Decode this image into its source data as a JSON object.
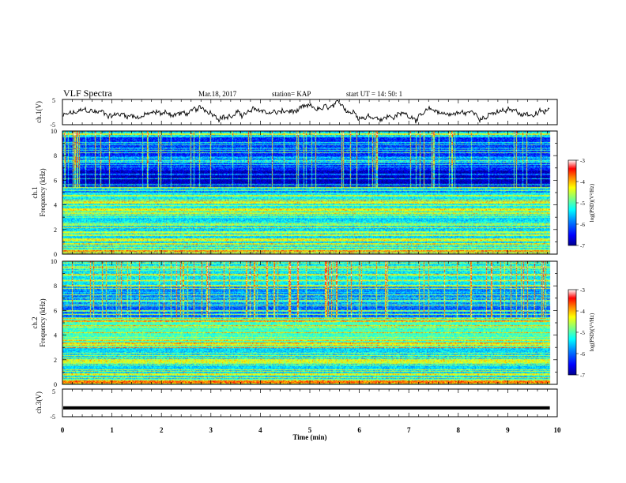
{
  "header": {
    "title": "VLF Spectra",
    "date": "Mar.18, 2017",
    "station": "station= KAP",
    "start": "start  UT =   14: 50: 1"
  },
  "chart_data": {
    "type": "heatmap",
    "x_axis": {
      "label": "Time  (min)",
      "range": [
        0,
        10
      ],
      "ticks": [
        "0",
        "1",
        "2",
        "3",
        "4",
        "5",
        "6",
        "7",
        "8",
        "9",
        "10"
      ]
    },
    "panels": [
      {
        "kind": "line",
        "ylabel": "ch.1(V)",
        "ylim": [
          -5,
          5
        ],
        "ticks": [
          "5",
          "-5"
        ],
        "description_values": {
          "mean_v": -0.5,
          "amplitude_v": 2.2
        }
      },
      {
        "kind": "spectrogram",
        "ylabel": "ch.1",
        "ylabel2": "Frequency  (kHz)",
        "ylim": [
          0,
          10
        ],
        "ticks": [
          "0",
          "2",
          "4",
          "6",
          "8",
          "10"
        ],
        "colorbar": {
          "label": "log(PSD)(V²/Hz)",
          "range": [
            -7,
            -3
          ],
          "ticks": [
            "-3",
            "-4",
            "-5",
            "-6",
            "-7"
          ]
        }
      },
      {
        "kind": "spectrogram",
        "ylabel": "ch.2",
        "ylabel2": "Frequency  (kHz)",
        "ylim": [
          0,
          10
        ],
        "ticks": [
          "0",
          "2",
          "4",
          "6",
          "8",
          "10"
        ],
        "colorbar": {
          "label": "log(PSD)(V²/Hz)",
          "range": [
            -7,
            -3
          ],
          "ticks": [
            "-3",
            "-4",
            "-5",
            "-6",
            "-7"
          ]
        }
      },
      {
        "kind": "line",
        "ylabel": "ch.3(V)",
        "ylim": [
          -5,
          5
        ],
        "ticks": [
          "5",
          "-5"
        ],
        "constant_value_v": -1.8
      }
    ],
    "data_end_min": 9.85,
    "colormap": [
      "#00008f",
      "#0000ff",
      "#0080ff",
      "#00ffff",
      "#80ff80",
      "#ffff00",
      "#ff8000",
      "#ff0000",
      "#ffffff"
    ]
  }
}
